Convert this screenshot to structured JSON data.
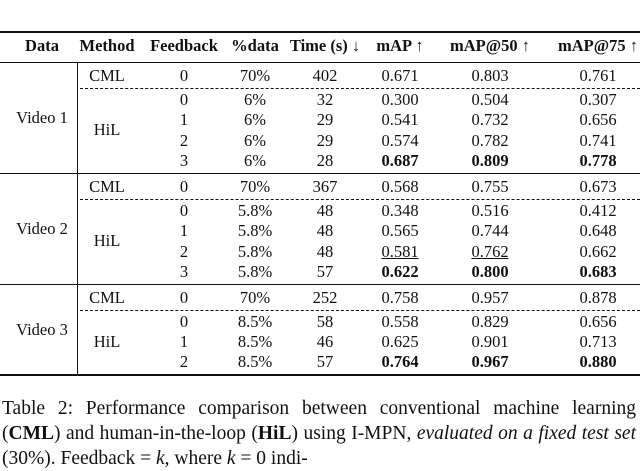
{
  "table": {
    "header": [
      "Data",
      "Method",
      "Feedback",
      "%data",
      "Time (s) ↓",
      "mAP ↑",
      "mAP@50 ↑",
      "mAP@75 ↑"
    ],
    "groups": [
      {
        "data": "Video 1",
        "cml": {
          "method": "CML",
          "cells": [
            "0",
            "70%",
            "402",
            "0.671",
            "0.803",
            "0.761"
          ]
        },
        "hil": {
          "method": "HiL",
          "rows": [
            {
              "cells": [
                "0",
                "6%",
                "32",
                "0.300",
                "0.504",
                "0.307"
              ]
            },
            {
              "cells": [
                "1",
                "6%",
                "29",
                "0.541",
                "0.732",
                "0.656"
              ]
            },
            {
              "cells": [
                "2",
                "6%",
                "29",
                "0.574",
                "0.782",
                "0.741"
              ]
            },
            {
              "cells": [
                "3",
                "6%",
                "28",
                "0.687",
                "0.809",
                "0.778"
              ],
              "bold": [
                3,
                4,
                5
              ]
            }
          ]
        }
      },
      {
        "data": "Video 2",
        "cml": {
          "method": "CML",
          "cells": [
            "0",
            "70%",
            "367",
            "0.568",
            "0.755",
            "0.673"
          ]
        },
        "hil": {
          "method": "HiL",
          "rows": [
            {
              "cells": [
                "0",
                "5.8%",
                "48",
                "0.348",
                "0.516",
                "0.412"
              ]
            },
            {
              "cells": [
                "1",
                "5.8%",
                "48",
                "0.565",
                "0.744",
                "0.648"
              ]
            },
            {
              "cells": [
                "2",
                "5.8%",
                "48",
                "0.581",
                "0.762",
                "0.662"
              ],
              "underline": [
                3,
                4
              ]
            },
            {
              "cells": [
                "3",
                "5.8%",
                "57",
                "0.622",
                "0.800",
                "0.683"
              ],
              "bold": [
                3,
                4,
                5
              ]
            }
          ]
        }
      },
      {
        "data": "Video 3",
        "cml": {
          "method": "CML",
          "cells": [
            "0",
            "70%",
            "252",
            "0.758",
            "0.957",
            "0.878"
          ]
        },
        "hil": {
          "method": "HiL",
          "rows": [
            {
              "cells": [
                "0",
                "8.5%",
                "58",
                "0.558",
                "0.829",
                "0.656"
              ]
            },
            {
              "cells": [
                "1",
                "8.5%",
                "46",
                "0.625",
                "0.901",
                "0.713"
              ]
            },
            {
              "cells": [
                "2",
                "8.5%",
                "57",
                "0.764",
                "0.967",
                "0.880"
              ],
              "bold": [
                3,
                4,
                5
              ]
            }
          ]
        }
      }
    ]
  },
  "caption": [
    {
      "text": "Table 2: Performance comparison between conventional machine learning ("
    },
    {
      "text": "CML",
      "style": "bold"
    },
    {
      "text": ") and human-in-the-loop ("
    },
    {
      "text": "HiL",
      "style": "bold"
    },
    {
      "text": ") using I-MPN, "
    },
    {
      "text": "evaluated on a fixed test set",
      "style": "italic"
    },
    {
      "text": " (30%). Feedback = "
    },
    {
      "text": "k",
      "style": "italic"
    },
    {
      "text": ", where "
    },
    {
      "text": "k",
      "style": "italic"
    },
    {
      "text": " = 0 indi-"
    }
  ]
}
